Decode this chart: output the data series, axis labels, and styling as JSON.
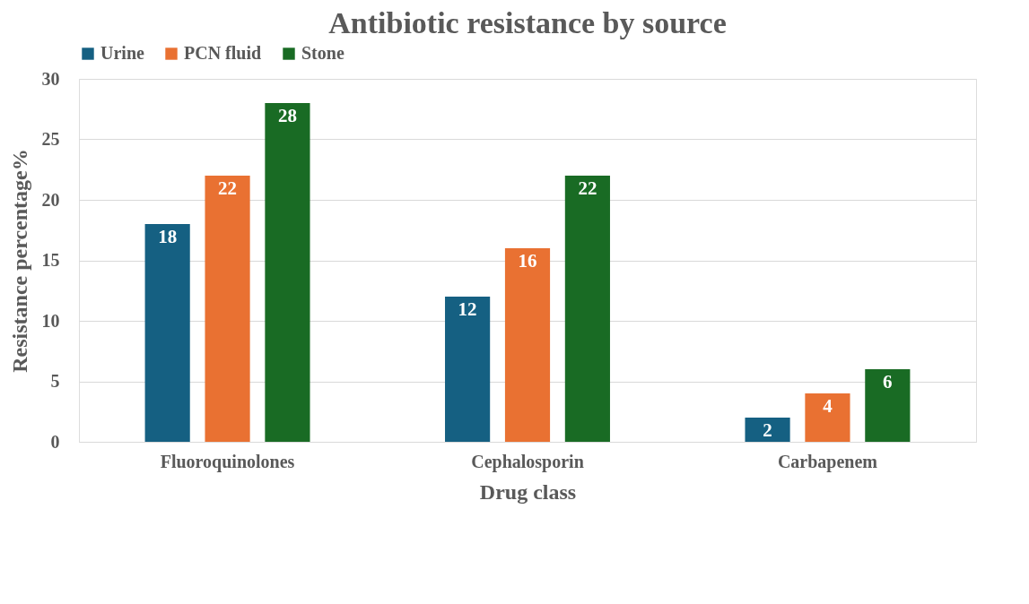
{
  "chart_data": {
    "type": "bar",
    "title": "Antibiotic resistance by source",
    "xlabel": "Drug class",
    "ylabel": "Resistance percentage%",
    "categories": [
      "Fluoroquinolones",
      "Cephalosporin",
      "Carbapenem"
    ],
    "series": [
      {
        "name": "Urine",
        "color": "#156082",
        "values": [
          18,
          12,
          2
        ]
      },
      {
        "name": "PCN fluid",
        "color": "#e97132",
        "values": [
          22,
          16,
          4
        ]
      },
      {
        "name": "Stone",
        "color": "#196b24",
        "values": [
          28,
          22,
          6
        ]
      }
    ],
    "ylim": [
      0,
      30
    ],
    "yticks": [
      0,
      5,
      10,
      15,
      20,
      25,
      30
    ],
    "grid": "y",
    "legend": "top",
    "data_labels": true
  }
}
